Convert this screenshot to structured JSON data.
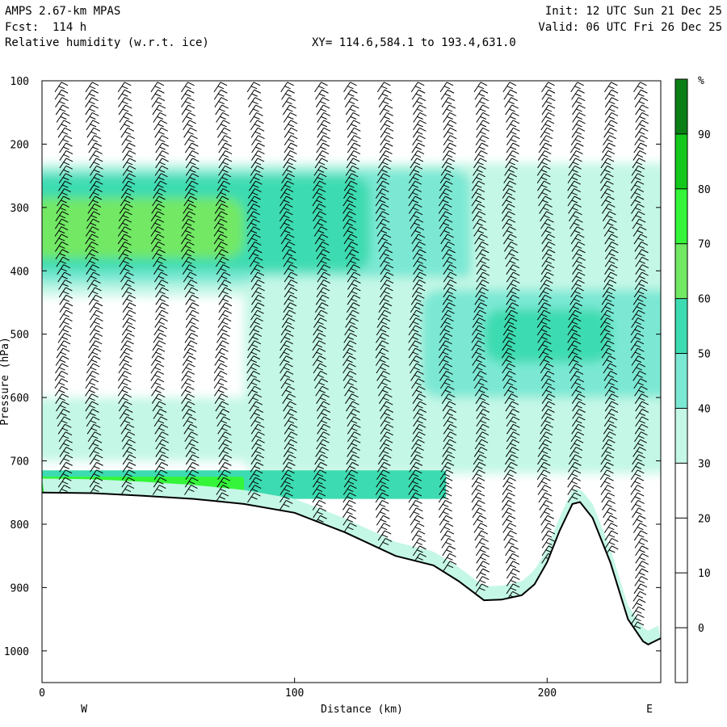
{
  "header": {
    "model": "AMPS 2.67-km MPAS",
    "forecast": "Fcst:  114 h",
    "field": "Relative humidity (w.r.t. ice)",
    "init": "Init: 12 UTC Sun 21 Dec 25",
    "valid": "Valid: 06 UTC Fri 26 Dec 25",
    "xy": "XY= 114.6,584.1 to 193.4,631.0"
  },
  "chart_data": {
    "type": "heatmap",
    "xlabel": "Distance (km)",
    "ylabel": "Pressure (hPa)",
    "x_ticks": [
      0,
      100,
      200
    ],
    "y_ticks": [
      100,
      200,
      300,
      400,
      500,
      600,
      700,
      800,
      900,
      1000
    ],
    "xlim": [
      0,
      245
    ],
    "ylim": [
      1050,
      100
    ],
    "y_scale": "linear",
    "left_label": "W",
    "right_label": "E",
    "colorbar": {
      "unit": "%",
      "labels": [
        90,
        80,
        70,
        60,
        50,
        40,
        30,
        20,
        10,
        0
      ],
      "bands": [
        {
          "from": 30,
          "to": 40,
          "color": "#c4f7e6"
        },
        {
          "from": 40,
          "to": 50,
          "color": "#7be8d4"
        },
        {
          "from": 50,
          "to": 60,
          "color": "#3ddbb1"
        },
        {
          "from": 60,
          "to": 70,
          "color": "#72e865"
        },
        {
          "from": 70,
          "to": 80,
          "color": "#34f539"
        },
        {
          "from": 80,
          "to": 90,
          "color": "#14c81b"
        },
        {
          "from": 90,
          "to": 100,
          "color": "#0a7f16"
        }
      ]
    },
    "terrain_surface_hpa": {
      "x": [
        0,
        20,
        40,
        60,
        80,
        100,
        120,
        140,
        155,
        165,
        175,
        182,
        190,
        195,
        200,
        205,
        210,
        213,
        218,
        225,
        232,
        238,
        240,
        245
      ],
      "p": [
        750,
        751,
        755,
        760,
        768,
        782,
        813,
        850,
        865,
        890,
        920,
        919,
        912,
        895,
        860,
        810,
        768,
        765,
        790,
        860,
        950,
        985,
        990,
        980
      ]
    },
    "rh_regions": [
      {
        "level": "30-40",
        "shape": "upper moist layer",
        "x": [
          0,
          245
        ],
        "p": [
          230,
          440
        ]
      },
      {
        "level": "40-50",
        "shape": "upper moist layer",
        "x": [
          0,
          170
        ],
        "p": [
          240,
          420
        ]
      },
      {
        "level": "50-60",
        "shape": "upper moist layer",
        "x": [
          0,
          130
        ],
        "p": [
          250,
          400
        ]
      },
      {
        "level": "60-70",
        "shape": "upper moist core",
        "x": [
          0,
          80
        ],
        "p": [
          285,
          380
        ]
      },
      {
        "level": "30-40",
        "shape": "mid layer",
        "x": [
          80,
          245
        ],
        "p": [
          410,
          720
        ]
      },
      {
        "level": "40-50",
        "shape": "mid layer",
        "x": [
          150,
          245
        ],
        "p": [
          430,
          600
        ]
      },
      {
        "level": "50-60",
        "shape": "mid core",
        "x": [
          175,
          225
        ],
        "p": [
          460,
          545
        ]
      },
      {
        "level": "30-40",
        "shape": "lower layer",
        "x": [
          0,
          245
        ],
        "p": [
          600,
          700
        ]
      },
      {
        "level": "50-60",
        "shape": "near-surface",
        "x": [
          0,
          160
        ],
        "p": [
          715,
          760
        ]
      },
      {
        "level": "70-80",
        "shape": "near-surface",
        "x": [
          0,
          80
        ],
        "p": [
          725,
          760
        ]
      }
    ],
    "wind_barbs": {
      "columns_km": [
        8,
        20,
        33,
        46,
        58,
        71,
        84,
        97,
        110,
        122,
        135,
        148,
        160,
        173,
        185,
        199,
        211,
        224,
        236
      ],
      "levels_hpa_step": 12
    }
  }
}
